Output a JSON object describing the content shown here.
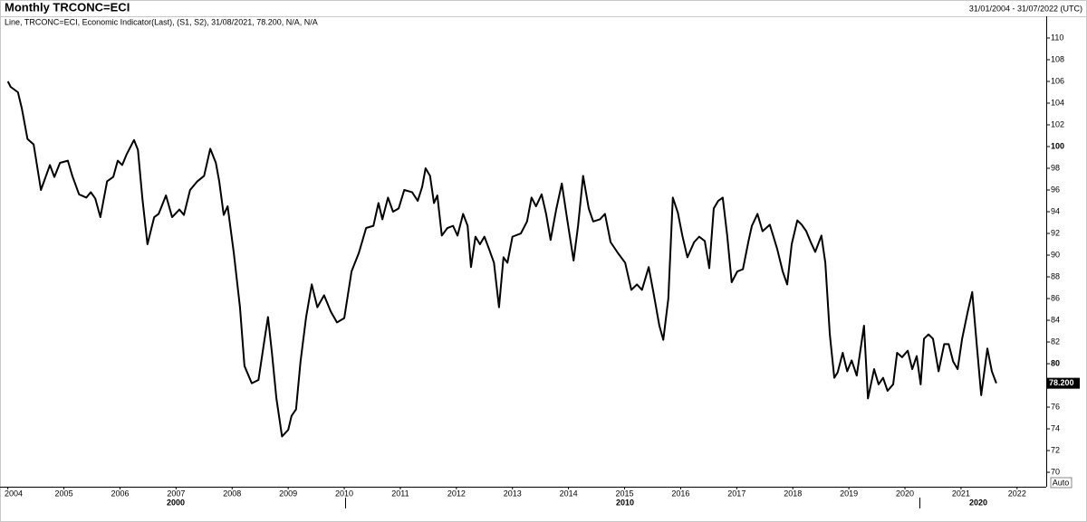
{
  "chart_data": {
    "type": "line",
    "title": "Monthly TRCONC=ECI",
    "date_range": "31/01/2004 - 31/07/2022 (UTC)",
    "legend_text": "Line, TRCONC=ECI, Economic Indicator(Last), (S1, S2), 31/08/2021, 78.200, N/A, N/A",
    "auto_label": "Auto",
    "x_major_labels": [
      "2000",
      "2010",
      "2020"
    ],
    "last_label": {
      "value": 78.2,
      "label": "78.200"
    },
    "xlim": [
      2003.86,
      2022.52
    ],
    "xticks": [
      2004,
      2005,
      2006,
      2007,
      2008,
      2009,
      2010,
      2011,
      2012,
      2013,
      2014,
      2015,
      2016,
      2017,
      2018,
      2019,
      2020,
      2021,
      2022
    ],
    "ylim": [
      68.67,
      112
    ],
    "yticks": [
      70,
      72,
      74,
      76,
      78,
      80,
      82,
      84,
      86,
      88,
      90,
      92,
      94,
      96,
      98,
      100,
      102,
      104,
      106,
      108,
      110
    ],
    "bold_yticks": [
      80,
      100
    ],
    "series": [
      {
        "name": "TRCONC=ECI",
        "color": "#000000",
        "x": [
          2004.0,
          2004.05,
          2004.18,
          2004.25,
          2004.35,
          2004.46,
          2004.59,
          2004.75,
          2004.83,
          2004.93,
          2005.07,
          2005.15,
          2005.27,
          2005.4,
          2005.48,
          2005.56,
          2005.65,
          2005.77,
          2005.88,
          2005.96,
          2006.04,
          2006.12,
          2006.25,
          2006.32,
          2006.4,
          2006.49,
          2006.61,
          2006.69,
          2006.82,
          2006.93,
          2007.06,
          2007.14,
          2007.25,
          2007.38,
          2007.5,
          2007.61,
          2007.71,
          2007.77,
          2007.85,
          2007.92,
          2008.03,
          2008.14,
          2008.22,
          2008.35,
          2008.47,
          2008.58,
          2008.64,
          2008.71,
          2008.79,
          2008.89,
          2009.0,
          2009.06,
          2009.14,
          2009.22,
          2009.32,
          2009.42,
          2009.52,
          2009.64,
          2009.76,
          2009.87,
          2010.0,
          2010.13,
          2010.26,
          2010.39,
          2010.52,
          2010.61,
          2010.68,
          2010.78,
          2010.87,
          2010.97,
          2011.07,
          2011.21,
          2011.31,
          2011.39,
          2011.45,
          2011.53,
          2011.6,
          2011.66,
          2011.74,
          2011.84,
          2011.94,
          2012.02,
          2012.12,
          2012.2,
          2012.26,
          2012.34,
          2012.42,
          2012.5,
          2012.58,
          2012.67,
          2012.76,
          2012.84,
          2012.91,
          2013.0,
          2013.15,
          2013.26,
          2013.34,
          2013.42,
          2013.52,
          2013.6,
          2013.68,
          2013.78,
          2013.88,
          2013.97,
          2014.09,
          2014.17,
          2014.26,
          2014.36,
          2014.44,
          2014.56,
          2014.65,
          2014.75,
          2014.88,
          2015.01,
          2015.12,
          2015.22,
          2015.31,
          2015.43,
          2015.52,
          2015.62,
          2015.69,
          2015.78,
          2015.86,
          2015.95,
          2016.03,
          2016.12,
          2016.24,
          2016.33,
          2016.43,
          2016.51,
          2016.59,
          2016.67,
          2016.75,
          2016.83,
          2016.91,
          2017.01,
          2017.11,
          2017.21,
          2017.27,
          2017.37,
          2017.46,
          2017.59,
          2017.72,
          2017.82,
          2017.9,
          2017.98,
          2018.08,
          2018.16,
          2018.24,
          2018.32,
          2018.4,
          2018.51,
          2018.58,
          2018.66,
          2018.74,
          2018.8,
          2018.89,
          2018.97,
          2019.05,
          2019.14,
          2019.21,
          2019.27,
          2019.34,
          2019.45,
          2019.53,
          2019.61,
          2019.69,
          2019.79,
          2019.86,
          2019.95,
          2020.05,
          2020.13,
          2020.21,
          2020.28,
          2020.34,
          2020.42,
          2020.5,
          2020.6,
          2020.7,
          2020.78,
          2020.86,
          2020.94,
          2021.02,
          2021.12,
          2021.2,
          2021.28,
          2021.36,
          2021.47,
          2021.55,
          2021.63
        ],
        "values": [
          106,
          105.5,
          105,
          103.5,
          100.7,
          100.2,
          96,
          98.3,
          97.2,
          98.5,
          98.7,
          97.3,
          95.6,
          95.3,
          95.8,
          95.2,
          93.5,
          96.8,
          97.2,
          98.7,
          98.3,
          99.3,
          100.6,
          99.7,
          95.2,
          91,
          93.5,
          93.8,
          95.5,
          93.5,
          94.2,
          93.7,
          96,
          96.8,
          97.3,
          99.8,
          98.5,
          96.8,
          93.7,
          94.5,
          90.2,
          85.2,
          79.8,
          78.2,
          78.5,
          82.3,
          84.3,
          81,
          76.8,
          73.3,
          73.9,
          75.2,
          75.8,
          80.2,
          84.3,
          87.3,
          85.2,
          86.3,
          84.8,
          83.8,
          84.2,
          88.5,
          90.2,
          92.5,
          92.7,
          94.8,
          93.3,
          95.3,
          94,
          94.3,
          96,
          95.8,
          95,
          96.3,
          98,
          97.3,
          94.8,
          95.5,
          91.8,
          92.5,
          92.7,
          91.8,
          93.8,
          92.7,
          88.9,
          91.7,
          91,
          91.7,
          90.6,
          89.3,
          85.2,
          89.8,
          89.3,
          91.7,
          92,
          93.1,
          95.3,
          94.5,
          95.6,
          93.8,
          91.4,
          94.2,
          96.6,
          93.5,
          89.5,
          92.7,
          97.3,
          94.3,
          93.1,
          93.3,
          93.8,
          91.2,
          90.2,
          89.3,
          86.8,
          87.3,
          86.8,
          88.9,
          86.4,
          83.5,
          82.2,
          86,
          95.3,
          93.9,
          91.8,
          89.8,
          91.2,
          91.7,
          91.3,
          88.8,
          94.3,
          95,
          95.3,
          91.8,
          87.5,
          88.5,
          88.7,
          91.3,
          92.7,
          93.8,
          92.2,
          92.8,
          90.6,
          88.5,
          87.3,
          91,
          93.2,
          92.8,
          92.2,
          91.2,
          90.3,
          91.8,
          89.3,
          82.7,
          78.7,
          79.2,
          81,
          79.3,
          80.3,
          78.9,
          81.4,
          83.5,
          76.8,
          79.5,
          78.1,
          78.7,
          77.5,
          78.1,
          81,
          80.6,
          81.2,
          79.5,
          80.7,
          78.1,
          82.3,
          82.7,
          82.3,
          79.3,
          81.8,
          81.8,
          80.2,
          79.5,
          82.3,
          84.8,
          86.6,
          81.8,
          77.1,
          81.4,
          79.3,
          78.2
        ]
      }
    ]
  }
}
